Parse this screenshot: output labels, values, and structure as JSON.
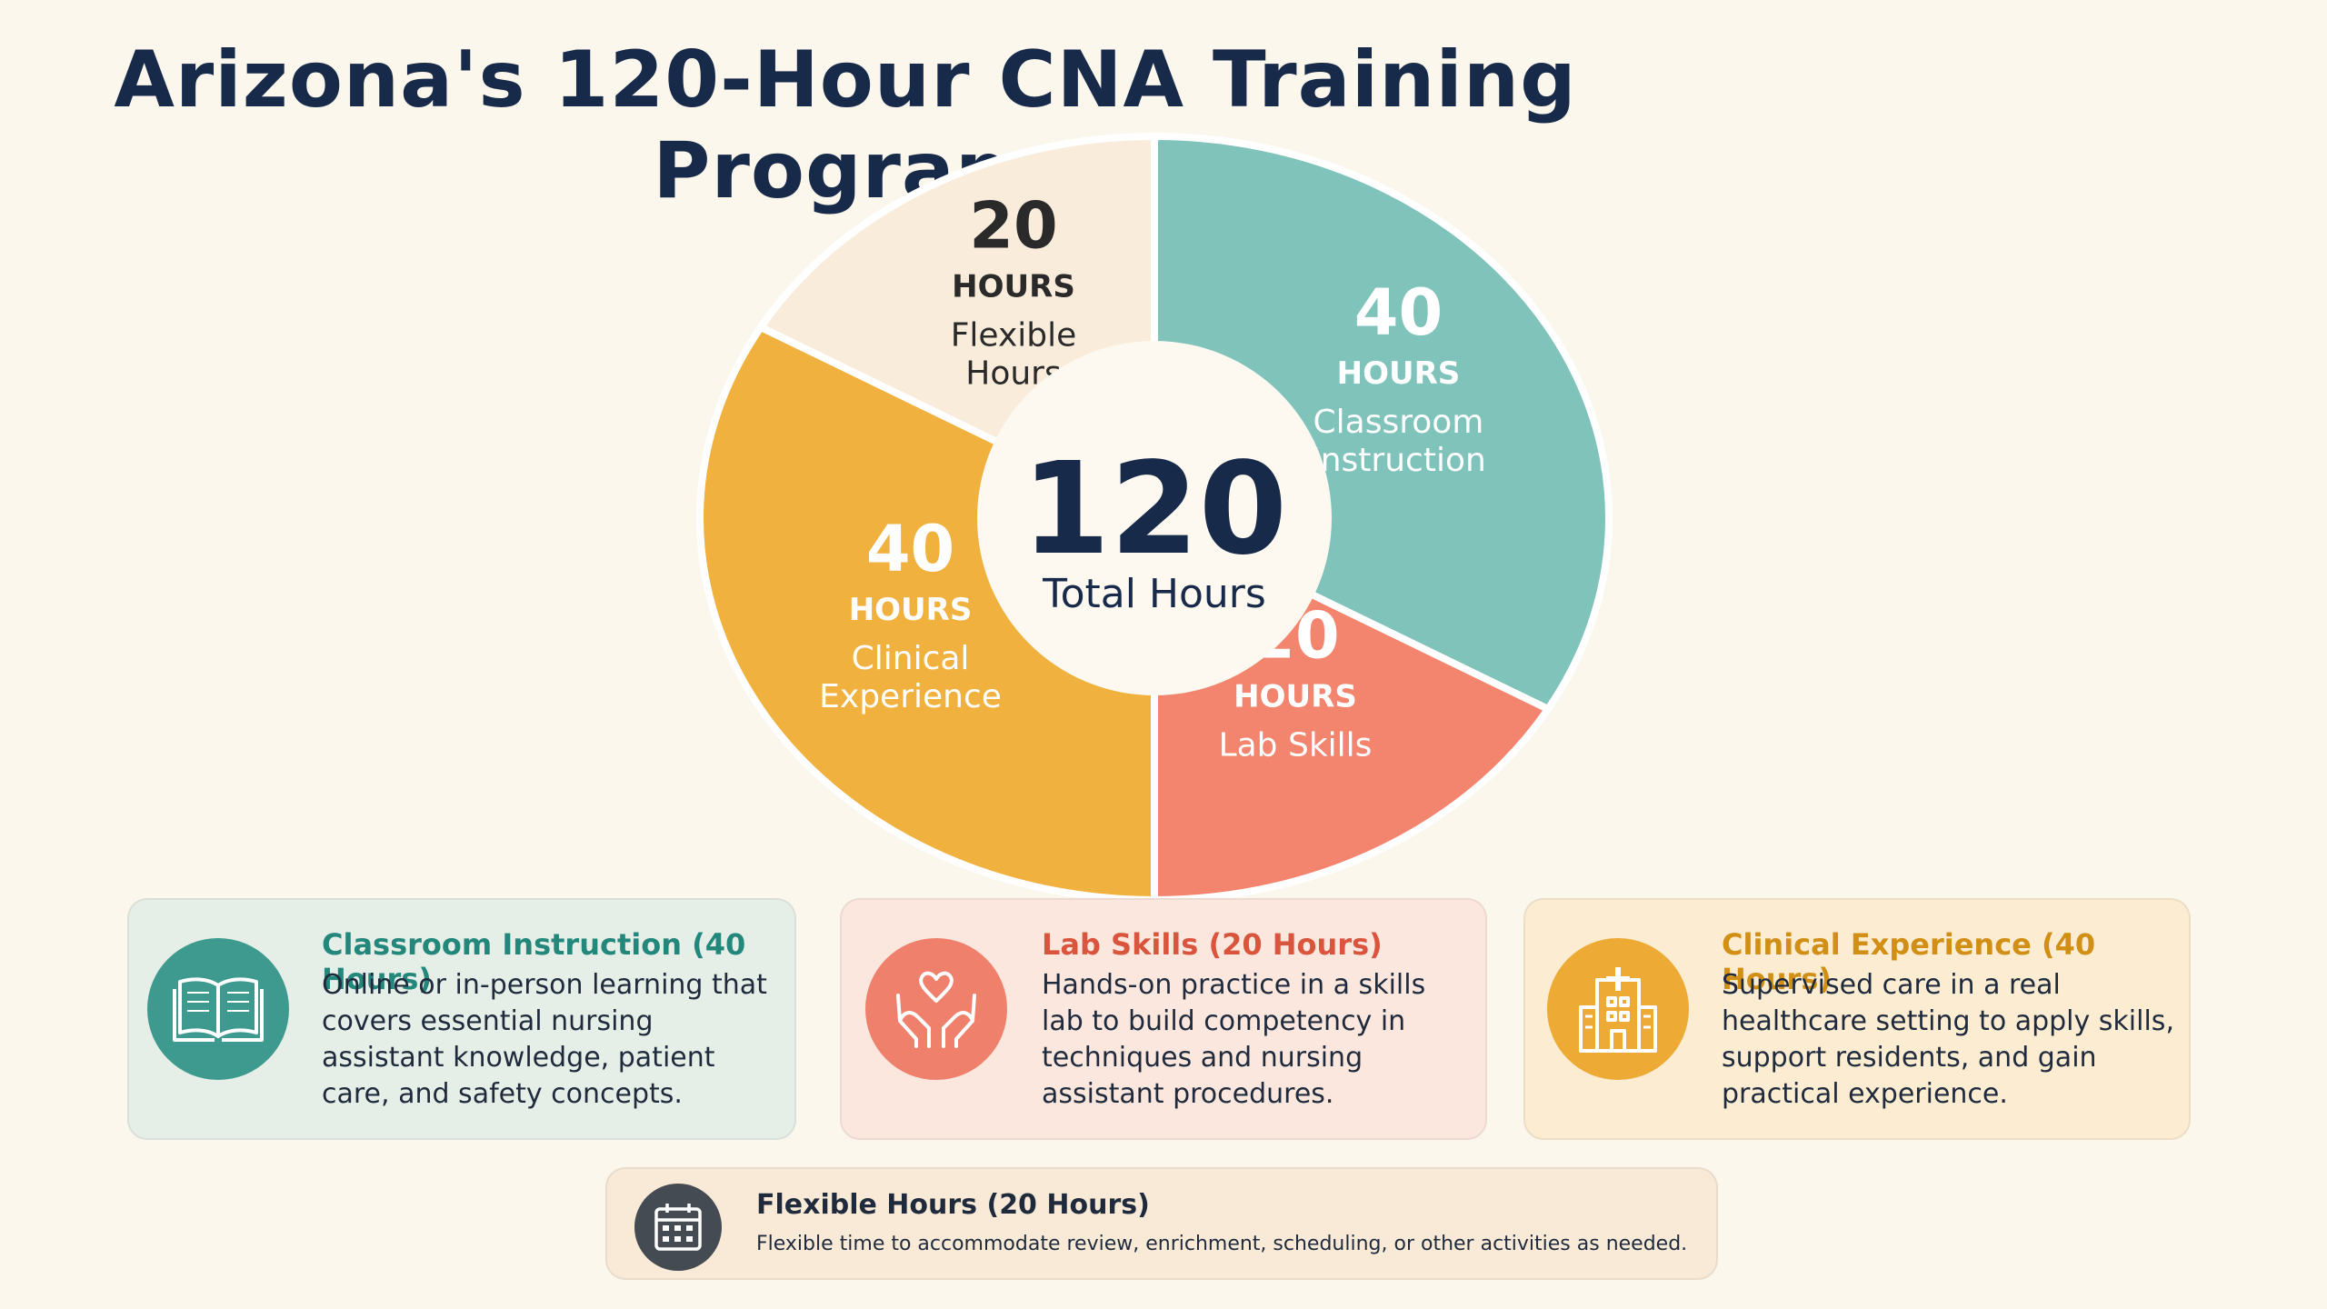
{
  "title": "Arizona's 120-Hour CNA Training Program",
  "center": {
    "total": "120",
    "label": "Total Hours"
  },
  "chart_data": {
    "type": "pie",
    "title": "Arizona's 120-Hour CNA Training Program",
    "total": 120,
    "slices": [
      {
        "name": "Classroom Instruction",
        "value": 40,
        "value_label": "40",
        "unit_label": "HOURS",
        "label_lines": [
          "Classroom",
          "Instruction"
        ],
        "color": "#7fc3bb",
        "text_color": "#ffffff"
      },
      {
        "name": "Lab Skills",
        "value": 20,
        "value_label": "20",
        "unit_label": "HOURS",
        "label_lines": [
          "Lab Skills"
        ],
        "color": "#f3856e",
        "text_color": "#ffffff"
      },
      {
        "name": "Clinical Experience",
        "value": 40,
        "value_label": "40",
        "unit_label": "HOURS",
        "label_lines": [
          "Clinical",
          "Experience"
        ],
        "color": "#f0b13e",
        "text_color": "#ffffff"
      },
      {
        "name": "Flexible Hours",
        "value": 20,
        "value_label": "20",
        "unit_label": "HOURS",
        "label_lines": [
          "Flexible",
          "Hours"
        ],
        "color": "#f9ecdb",
        "text_color": "#2a2a2a"
      }
    ]
  },
  "cards": {
    "classroom": {
      "title": "Classroom Instruction (40 Hours)",
      "description": "Online or in-person learning that covers essential nursing assistant knowledge, patient care, and safety concepts.",
      "icon": "open-book-icon",
      "color": "#3e9a8e"
    },
    "lab": {
      "title": "Lab Skills (20 Hours)",
      "description": "Hands-on practice in a skills lab to build competency in techniques and nursing assistant procedures.",
      "icon": "hands-heart-icon",
      "color": "#ef806c"
    },
    "clinical": {
      "title": "Clinical Experience (40 Hours)",
      "description": "Supervised care in a real healthcare setting to apply skills, support residents, and gain practical experience.",
      "icon": "hospital-icon",
      "color": "#edaa34"
    },
    "flexible": {
      "title": "Flexible Hours (20 Hours)",
      "description": "Flexible time to accommodate review, enrichment, scheduling, or other activities as needed.",
      "icon": "calendar-icon",
      "color": "#444b52"
    }
  }
}
